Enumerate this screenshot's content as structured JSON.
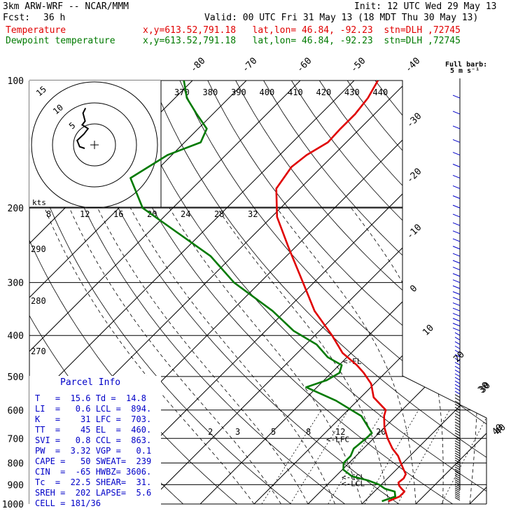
{
  "header": {
    "model": "3km ARW-WRF -- NCAR/MMM",
    "init": "Init: 12 UTC Wed 29 May 13",
    "fcst_label": "Fcst:",
    "fcst_value": "36 h",
    "valid": "Valid: 00 UTC Fri 31 May 13 (18 MDT Thu 30 May 13)"
  },
  "legend": [
    {
      "name": "Temperature",
      "info": "x,y=613.52,791.18   lat,lon= 46.84, -92.23  stn=DLH ,72745",
      "color": "#e00000"
    },
    {
      "name": "Dewpoint temperature",
      "info": "x,y=613.52,791.18   lat,lon= 46.84, -92.23  stn=DLH ,72745",
      "color": "#007a00"
    }
  ],
  "parcel_info": {
    "title": "Parcel Info",
    "rows": [
      "T   =  15.6 Td =  14.8",
      "LI  =   0.6 LCL =  894.",
      "K   =    31 LFC =  703.",
      "TT  =    45 EL  =  460.",
      "SVI =   0.8 CCL =  863.",
      "PW  =  3.32 VGP =   0.1",
      "CAPE =   50 SWEAT=  239",
      "CIN  =  -65 HWBZ= 3606.",
      "Tc  =  22.5 SHEAR=  31.",
      "SREH =  202 LAPSE=  5.6",
      "CELL = 181/36"
    ]
  },
  "chart_data": {
    "type": "line",
    "title": "",
    "xlabel": "",
    "ylabel": "",
    "y_scale": "log",
    "ylim": [
      1000,
      100
    ],
    "pressure_levels": [
      100,
      200,
      300,
      400,
      500,
      600,
      700,
      800,
      900,
      1000
    ],
    "isotherm_labels": [
      "-80",
      "-70",
      "-60",
      "-50",
      "-40",
      "-30",
      "-20",
      "-10",
      "0",
      "10",
      "20",
      "30",
      "40"
    ],
    "theta_labels": [
      "370",
      "380",
      "390",
      "400",
      "410",
      "420",
      "430",
      "440"
    ],
    "theta_left_labels": [
      "290",
      "280",
      "270"
    ],
    "mixing_ratio_labels": [
      "2",
      "3",
      "5",
      "8",
      "12",
      "20"
    ],
    "series": [
      {
        "name": "Temperature",
        "color": "#e00000",
        "p": [
          985,
          960,
          935,
          920,
          905,
          890,
          870,
          850,
          830,
          800,
          770,
          740,
          700,
          660,
          620,
          600,
          560,
          520,
          490,
          470,
          440,
          400,
          350,
          300,
          250,
          210,
          180,
          160,
          150,
          140,
          130,
          120,
          110,
          100
        ],
        "t": [
          14.4,
          15.6,
          15.6,
          14.5,
          13.5,
          12.8,
          13.0,
          12.6,
          11.4,
          9.6,
          7.8,
          5.4,
          2.6,
          0.0,
          -2.2,
          -3.0,
          -7.6,
          -10.6,
          -14.0,
          -16.7,
          -21.6,
          -26.8,
          -34.6,
          -42.0,
          -50.8,
          -59.0,
          -64.4,
          -65.6,
          -65.0,
          -63.4,
          -63.6,
          -63.6,
          -64.2,
          -65.6
        ]
      },
      {
        "name": "Dewpoint temperature",
        "color": "#007a00",
        "p": [
          985,
          960,
          935,
          920,
          900,
          880,
          860,
          830,
          800,
          770,
          740,
          700,
          680,
          620,
          570,
          530,
          510,
          490,
          470,
          450,
          420,
          390,
          350,
          300,
          260,
          200,
          170,
          150,
          140,
          130,
          120,
          110,
          100
        ],
        "t": [
          13.2,
          14.8,
          13.8,
          11.4,
          9.6,
          6.8,
          3.0,
          0.2,
          -1.0,
          -1.0,
          -1.8,
          -1.4,
          -1.3,
          -6.4,
          -14.0,
          -22.0,
          -19.5,
          -18.5,
          -19.5,
          -23.6,
          -28.0,
          -34.8,
          -42.4,
          -54.8,
          -64.0,
          -85.6,
          -93.4,
          -90.8,
          -87.0,
          -88.4,
          -93.0,
          -97.8,
          -101.6
        ]
      }
    ],
    "parcel_levels": [
      {
        "name": "EL",
        "p": 460
      },
      {
        "name": "LFC",
        "p": 703
      },
      {
        "name": "CCL",
        "p": 863
      },
      {
        "name": "LCL",
        "p": 894
      }
    ],
    "hodograph": {
      "speed_unit_label": "kts",
      "ring_labels": [
        "5",
        "10",
        "15"
      ],
      "speed_tick_labels": [
        "8",
        "12",
        "16",
        "20",
        "24",
        "28",
        "32"
      ],
      "points": [
        [
          0,
          0
        ],
        [
          -1.2,
          0.4
        ],
        [
          -1.8,
          1.9
        ],
        [
          -0.2,
          3.4
        ],
        [
          0.8,
          4.7
        ],
        [
          -0.6,
          5.6
        ],
        [
          0.1,
          6.5
        ],
        [
          -0.4,
          8.4
        ],
        [
          0.2,
          9.6
        ]
      ]
    },
    "wind_barb_legend": {
      "title": "Full barb:",
      "value": "5 m s⁻¹"
    },
    "wind_axis_labels": [
      "30",
      "40"
    ]
  }
}
